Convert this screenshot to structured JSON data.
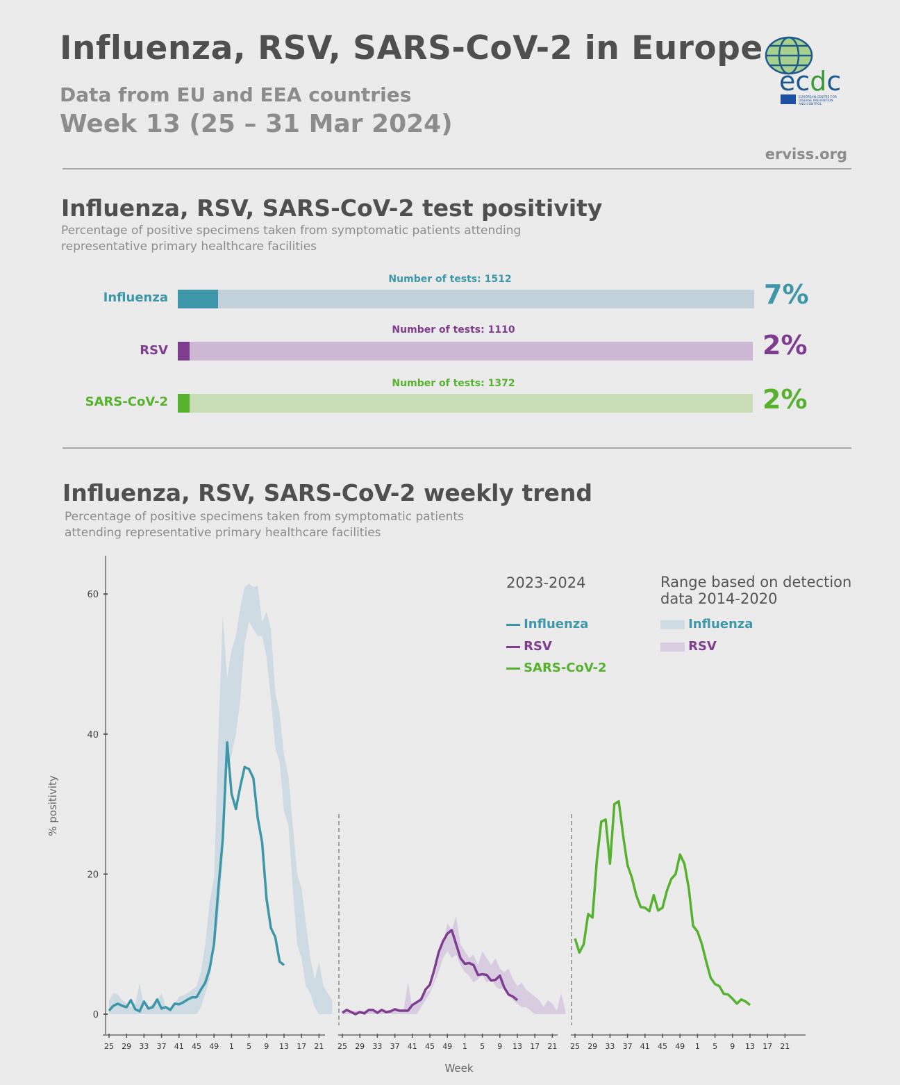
{
  "header": {
    "title": "Influenza, RSV, SARS-CoV-2 in Europe",
    "subtitle": "Data from EU and EEA countries",
    "week": "Week 13 (25 – 31 Mar 2024)",
    "site": "erviss.org",
    "logo": {
      "text": "ecdc",
      "caption": "EUROPEAN CENTRE FOR DISEASE PREVENTION AND CONTROL"
    }
  },
  "positivity": {
    "title": "Influenza, RSV, SARS-CoV-2 test positivity",
    "description": "Percentage of positive specimens taken from symptomatic patients attending representative primary healthcare facilities",
    "rows": [
      {
        "label": "Influenza",
        "tests": "Number of tests: 1512",
        "percent_label": "7%",
        "percent": 7,
        "color": "#3d97a8",
        "track": "#c3d2da"
      },
      {
        "label": "RSV",
        "tests": "Number of tests: 1110",
        "percent_label": "2%",
        "percent": 2,
        "color": "#7e3d8f",
        "track": "#cdb8d3"
      },
      {
        "label": "SARS-CoV-2",
        "tests": "Number of tests: 1372",
        "percent_label": "2%",
        "percent": 2,
        "color": "#56b22e",
        "track": "#c8ddb5"
      }
    ]
  },
  "trend": {
    "title": "Influenza, RSV, SARS-CoV-2 weekly trend",
    "description": "Percentage of positive specimens taken from symptomatic patients attending representative primary healthcare facilities"
  },
  "chart_data": {
    "type": "line",
    "ylabel": "% positivity",
    "xlabel": "Week",
    "ylim": [
      0,
      60
    ],
    "yticks": [
      0,
      20,
      40,
      60
    ],
    "xtick_labels": [
      "25",
      "29",
      "33",
      "37",
      "41",
      "45",
      "49",
      "1",
      "5",
      "9",
      "13",
      "17",
      "21"
    ],
    "weeks": [
      25,
      26,
      27,
      28,
      29,
      30,
      31,
      32,
      33,
      34,
      35,
      36,
      37,
      38,
      39,
      40,
      41,
      42,
      43,
      44,
      45,
      46,
      47,
      48,
      49,
      50,
      51,
      52,
      1,
      2,
      3,
      4,
      5,
      6,
      7,
      8,
      9,
      10,
      11,
      12,
      13,
      14,
      15,
      16,
      17,
      18,
      19,
      20,
      21,
      22,
      23,
      24
    ],
    "legend": {
      "season_title": "2023-2024",
      "range_title": "Range based on detection data 2014-2020"
    },
    "series": [
      {
        "name": "Influenza",
        "color": "#3d97a8",
        "values": [
          0.5,
          1.2,
          1.5,
          1.2,
          1.0,
          2.0,
          0.7,
          0.4,
          1.8,
          0.8,
          1.0,
          2.1,
          0.8,
          1.0,
          0.6,
          1.5,
          1.4,
          1.7,
          2.1,
          2.4,
          2.4,
          3.5,
          4.5,
          6.5,
          10,
          18,
          25,
          38.8,
          31.5,
          29.3,
          32.5,
          35.3,
          35,
          33.7,
          28,
          24.5,
          16.5,
          12.3,
          11,
          7.5,
          7.0
        ]
      },
      {
        "name": "RSV",
        "color": "#7e3d8f",
        "values": [
          0.2,
          0.6,
          0.3,
          0,
          0.3,
          0.1,
          0.6,
          0.6,
          0.2,
          0.6,
          0.3,
          0.4,
          0.7,
          0.5,
          0.5,
          0.5,
          1.3,
          1.7,
          2.1,
          3.5,
          4.2,
          6.3,
          8.8,
          10.4,
          11.5,
          12,
          10,
          8,
          7.2,
          7.3,
          7,
          5.6,
          5.7,
          5.6,
          4.8,
          4.9,
          5.5,
          3.8,
          2.8,
          2.5,
          2.0
        ]
      },
      {
        "name": "SARS-CoV-2",
        "color": "#56b22e",
        "values": [
          10.8,
          8.8,
          10,
          14.3,
          13.8,
          22,
          27.5,
          27.8,
          21.5,
          30,
          30.4,
          25.5,
          21.3,
          19.5,
          17,
          15.3,
          15.2,
          14.7,
          17,
          14.8,
          15.2,
          17.6,
          19.3,
          20,
          22.8,
          21.5,
          18,
          12.6,
          11.8,
          10,
          7.5,
          5.2,
          4.3,
          4,
          2.9,
          2.8,
          2.2,
          1.5,
          2.1,
          1.8,
          1.3
        ]
      }
    ],
    "ranges": [
      {
        "name": "Influenza",
        "color": "#cfdbe2",
        "label_color": "#3d97a8",
        "high": [
          2,
          3,
          2.8,
          2,
          1.5,
          1,
          1.5,
          4.5,
          1,
          1,
          1.5,
          2,
          3,
          1,
          1,
          1.5,
          2.5,
          2.7,
          3,
          3.5,
          4,
          6,
          10,
          16,
          19.5,
          40,
          57,
          48,
          52,
          54,
          58,
          61,
          61.5,
          61,
          61.2,
          56,
          57.5,
          55,
          46,
          43,
          37,
          34,
          27,
          20,
          18,
          13,
          8,
          5,
          7.5,
          4,
          3,
          2
        ],
        "low": [
          0,
          0,
          0,
          0,
          0,
          0,
          0,
          0,
          0,
          0,
          0,
          0,
          0,
          0,
          0,
          0,
          0,
          0,
          0,
          0,
          0,
          1,
          3,
          5,
          9,
          14,
          22,
          35,
          37,
          40,
          45,
          53,
          56,
          55,
          54,
          54,
          51,
          45,
          38,
          36,
          29,
          27,
          18,
          10,
          8,
          4,
          3,
          1,
          0,
          0,
          0,
          0
        ]
      },
      {
        "name": "RSV",
        "color": "#d8cce0",
        "label_color": "#7e3d8f",
        "high": [
          0.5,
          0.5,
          0.5,
          0.5,
          0.5,
          0.5,
          0.5,
          0.5,
          0.5,
          0.5,
          0.5,
          0.5,
          0.5,
          0.5,
          0.5,
          4.5,
          1,
          1.5,
          2.5,
          3,
          3.5,
          5,
          8,
          10,
          13,
          12,
          14,
          10,
          9,
          8,
          8.5,
          7,
          9,
          8,
          7,
          8,
          6.5,
          6,
          6.5,
          5,
          4,
          4.5,
          3.5,
          3,
          2.5,
          2,
          1,
          2,
          1.5,
          0.5,
          3,
          0.5
        ],
        "low": [
          0,
          0,
          0,
          0,
          0,
          0,
          0,
          0,
          0,
          0,
          0,
          0,
          0,
          0,
          0,
          0,
          0,
          0,
          1,
          2,
          3,
          4.5,
          6,
          8,
          9,
          8,
          8.5,
          7,
          6,
          5.5,
          4.5,
          5,
          5.5,
          4.5,
          5,
          4,
          3.5,
          4,
          3,
          2,
          1.5,
          1,
          1,
          0.5,
          0,
          0,
          0,
          0,
          0,
          0,
          0,
          0
        ]
      }
    ]
  }
}
